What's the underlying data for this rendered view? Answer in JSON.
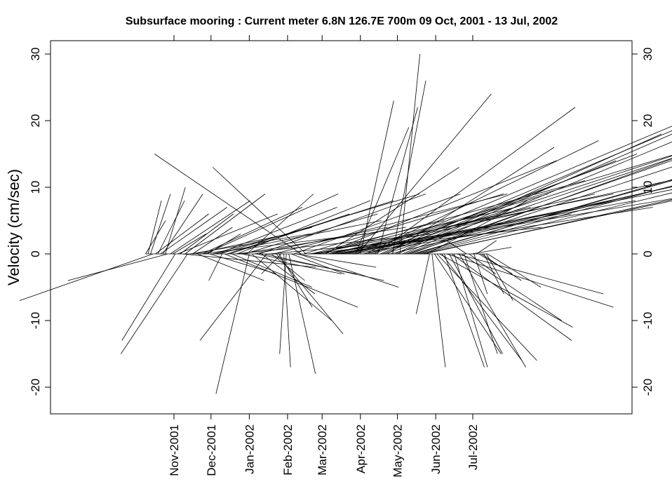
{
  "chart_data": {
    "type": "stick",
    "title": "Subsurface mooring : Current meter  6.8N 126.7E   700m  09 Oct, 2001 - 13 Jul, 2002",
    "ylabel": "Velocity (cm/sec)",
    "xlabel": "",
    "ylim": [
      -24,
      32
    ],
    "yticks": [
      -20,
      -10,
      0,
      10,
      20,
      30
    ],
    "ytick_labels": [
      "-20",
      "-10",
      "0",
      "10",
      "20",
      "30"
    ],
    "xlim": [
      "2001-07-24",
      "2002-11-07"
    ],
    "xticks": [
      "2001-11-01",
      "2001-12-01",
      "2002-01-01",
      "2002-02-01",
      "2002-03-01",
      "2002-04-01",
      "2002-05-01",
      "2002-06-01",
      "2002-07-01"
    ],
    "xtick_labels": [
      "Nov-2001",
      "Dec-2001",
      "Jan-2002",
      "Feb-2002",
      "Mar-2002",
      "Apr-2002",
      "May-2002",
      "Jun-2002",
      "Jul-2002"
    ],
    "grid": false,
    "series": [
      {
        "sticks": [
          [
            "2001-10-09",
            3,
            5
          ],
          [
            "2001-10-11",
            2,
            8
          ],
          [
            "2001-10-13",
            3,
            9
          ],
          [
            "2001-10-15",
            -20,
            -7
          ],
          [
            "2001-10-17",
            8,
            6
          ],
          [
            "2001-10-19",
            4,
            8
          ],
          [
            "2001-10-21",
            10,
            7
          ],
          [
            "2001-10-23",
            6,
            9
          ],
          [
            "2001-10-25",
            3,
            10
          ],
          [
            "2001-10-27",
            -15,
            -4
          ],
          [
            "2001-10-29",
            12,
            8
          ],
          [
            "2001-10-31",
            5,
            3
          ],
          [
            "2001-11-02",
            -8,
            -13
          ],
          [
            "2001-11-04",
            15,
            6
          ],
          [
            "2001-11-06",
            8,
            6
          ],
          [
            "2001-11-08",
            20,
            -2
          ],
          [
            "2001-11-10",
            12,
            9
          ],
          [
            "2001-11-12",
            -10,
            -15
          ],
          [
            "2001-11-14",
            18,
            3
          ],
          [
            "2001-11-16",
            6,
            4
          ],
          [
            "2001-11-18",
            14,
            3
          ],
          [
            "2001-11-20",
            10,
            -4
          ],
          [
            "2001-11-22",
            25,
            3
          ],
          [
            "2001-11-24",
            15,
            7
          ],
          [
            "2001-11-26",
            20,
            9
          ],
          [
            "2001-11-28",
            5,
            3
          ],
          [
            "2001-11-30",
            10,
            -3
          ],
          [
            "2001-12-02",
            15,
            4
          ],
          [
            "2001-12-04",
            25,
            5
          ],
          [
            "2001-12-06",
            18,
            7
          ],
          [
            "2001-12-08",
            30,
            9
          ],
          [
            "2001-12-10",
            -2,
            -4
          ],
          [
            "2001-12-12",
            20,
            -8
          ],
          [
            "2001-12-14",
            25,
            8
          ],
          [
            "2001-12-16",
            18,
            6
          ],
          [
            "2001-12-18",
            12,
            -5
          ],
          [
            "2001-12-20",
            30,
            3
          ],
          [
            "2001-12-22",
            20,
            8
          ],
          [
            "2001-12-24",
            25,
            4
          ],
          [
            "2001-12-26",
            15,
            -3
          ],
          [
            "2001-12-28",
            20,
            6
          ],
          [
            "2001-12-30",
            10,
            9
          ],
          [
            "2002-01-01",
            -5,
            -21
          ],
          [
            "2002-01-03",
            12,
            -10
          ],
          [
            "2002-01-05",
            20,
            4
          ],
          [
            "2002-01-07",
            15,
            -3
          ],
          [
            "2002-01-09",
            25,
            9
          ],
          [
            "2002-01-11",
            8,
            -6
          ],
          [
            "2002-01-13",
            18,
            -4
          ],
          [
            "2002-01-15",
            -10,
            -13
          ],
          [
            "2002-01-17",
            22,
            2
          ],
          [
            "2002-01-19",
            5,
            -4
          ],
          [
            "2002-01-21",
            35,
            9
          ],
          [
            "2002-01-23",
            10,
            -12
          ],
          [
            "2002-01-25",
            5,
            -8
          ],
          [
            "2002-01-27",
            -3,
            -3
          ],
          [
            "2002-01-29",
            1,
            -17
          ],
          [
            "2002-01-31",
            -1,
            -15
          ],
          [
            "2002-02-02",
            4,
            -18
          ],
          [
            "2002-02-04",
            8,
            -3
          ],
          [
            "2002-02-06",
            25,
            9
          ],
          [
            "2002-02-08",
            12,
            -2
          ],
          [
            "2002-02-10",
            15,
            -5
          ],
          [
            "2002-02-12",
            -22,
            15
          ],
          [
            "2002-02-14",
            30,
            9
          ],
          [
            "2002-02-16",
            -14,
            13
          ],
          [
            "2002-02-18",
            35,
            4
          ],
          [
            "2002-02-20",
            20,
            5
          ],
          [
            "2002-02-22",
            45,
            9
          ],
          [
            "2002-02-24",
            30,
            7
          ],
          [
            "2002-02-26",
            40,
            11
          ],
          [
            "2002-02-28",
            25,
            4
          ],
          [
            "2002-03-02",
            35,
            14
          ],
          [
            "2002-03-04",
            20,
            13
          ],
          [
            "2002-03-06",
            40,
            9
          ],
          [
            "2002-03-08",
            30,
            7
          ],
          [
            "2002-03-10",
            55,
            12
          ],
          [
            "2002-03-12",
            45,
            8
          ],
          [
            "2002-03-14",
            35,
            6
          ],
          [
            "2002-03-16",
            60,
            10
          ],
          [
            "2002-03-18",
            50,
            15
          ],
          [
            "2002-03-20",
            40,
            8
          ],
          [
            "2002-03-22",
            30,
            9
          ],
          [
            "2002-03-24",
            55,
            11
          ],
          [
            "2002-03-26",
            45,
            7
          ],
          [
            "2002-03-28",
            8,
            19
          ],
          [
            "2002-03-30",
            20,
            24
          ],
          [
            "2002-04-01",
            5,
            23
          ],
          [
            "2002-04-03",
            60,
            13
          ],
          [
            "2002-04-05",
            35,
            17
          ],
          [
            "2002-04-07",
            50,
            21
          ],
          [
            "2002-04-09",
            40,
            15
          ],
          [
            "2002-04-11",
            55,
            18
          ],
          [
            "2002-04-13",
            30,
            22
          ],
          [
            "2002-04-15",
            6,
            22
          ],
          [
            "2002-04-17",
            45,
            19
          ],
          [
            "2002-04-19",
            35,
            14
          ],
          [
            "2002-04-21",
            60,
            20
          ],
          [
            "2002-04-23",
            25,
            16
          ],
          [
            "2002-04-25",
            50,
            12
          ],
          [
            "2002-04-27",
            5,
            26
          ],
          [
            "2002-04-29",
            40,
            18
          ],
          [
            "2002-05-01",
            55,
            24
          ],
          [
            "2002-05-03",
            3,
            30
          ],
          [
            "2002-05-05",
            65,
            27
          ],
          [
            "2002-05-07",
            60,
            21
          ],
          [
            "2002-05-09",
            70,
            23
          ],
          [
            "2002-05-11",
            80,
            29
          ],
          [
            "2002-05-13",
            85,
            24
          ],
          [
            "2002-05-15",
            90,
            26
          ],
          [
            "2002-05-17",
            75,
            20
          ],
          [
            "2002-05-19",
            95,
            23
          ],
          [
            "2002-05-21",
            80,
            17
          ],
          [
            "2002-05-23",
            100,
            22
          ],
          [
            "2002-05-25",
            15,
            8
          ],
          [
            "2002-05-27",
            -2,
            -9
          ],
          [
            "2002-05-29",
            2,
            -17
          ],
          [
            "2002-05-31",
            10,
            -15
          ],
          [
            "2002-06-02",
            15,
            -16
          ],
          [
            "2002-06-04",
            20,
            -11
          ],
          [
            "2002-06-06",
            12,
            -16
          ],
          [
            "2002-06-08",
            6,
            -17
          ],
          [
            "2002-06-10",
            25,
            -8
          ],
          [
            "2002-06-12",
            8,
            -15
          ],
          [
            "2002-06-14",
            18,
            -13
          ],
          [
            "2002-06-16",
            5,
            -17
          ],
          [
            "2002-06-18",
            22,
            -6
          ],
          [
            "2002-06-20",
            10,
            -17
          ],
          [
            "2002-06-22",
            15,
            -10
          ],
          [
            "2002-06-24",
            5,
            -15
          ],
          [
            "2002-06-26",
            -3,
            2
          ],
          [
            "2002-06-28",
            4,
            -3
          ],
          [
            "2002-06-30",
            6,
            1
          ],
          [
            "2002-07-02",
            2,
            -6
          ],
          [
            "2002-07-04",
            3,
            2
          ],
          [
            "2002-07-06",
            5,
            -3
          ],
          [
            "2002-07-08",
            6,
            -4
          ],
          [
            "2002-07-10",
            3,
            -6
          ],
          [
            "2002-07-12",
            4,
            -7
          ],
          [
            "2002-07-13",
            8,
            -5
          ]
        ]
      }
    ]
  }
}
